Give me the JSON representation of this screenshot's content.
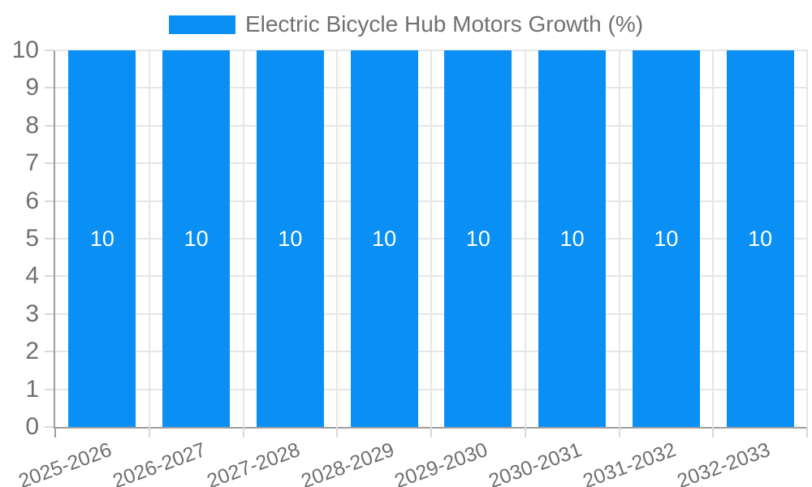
{
  "chart_data": {
    "type": "bar",
    "categories": [
      "2025-2026",
      "2026-2027",
      "2027-2028",
      "2028-2029",
      "2029-2030",
      "2030-2031",
      "2031-2032",
      "2032-2033"
    ],
    "series": [
      {
        "name": "Electric Bicycle Hub Motors Growth (%)",
        "values": [
          10,
          10,
          10,
          10,
          10,
          10,
          10,
          10
        ],
        "color": "#0A90F5"
      }
    ],
    "bar_labels": [
      "10",
      "10",
      "10",
      "10",
      "10",
      "10",
      "10",
      "10"
    ],
    "ylim": [
      0,
      10
    ],
    "yticks": [
      0,
      1,
      2,
      3,
      4,
      5,
      6,
      7,
      8,
      9,
      10
    ],
    "ytick_labels": [
      "0",
      "1",
      "2",
      "3",
      "4",
      "5",
      "6",
      "7",
      "8",
      "9",
      "10"
    ],
    "grid": true,
    "legend": {
      "position": "top",
      "label": "Electric Bicycle Hub Motors Growth (%)"
    },
    "colors": {
      "bar": "#0A90F5",
      "bar_label_text": "#ffffff",
      "axis_text": "#707070",
      "axis_line": "#9e9e9e",
      "grid_line": "#e6e6e6",
      "tick_mark": "#d9d9d9",
      "background": "#ffffff"
    }
  }
}
